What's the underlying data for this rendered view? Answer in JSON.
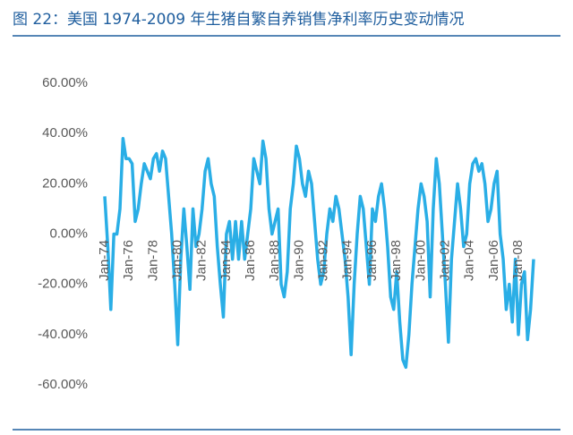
{
  "chart_data": {
    "type": "line",
    "title": "图 22：美国 1974-2009 年生猪自繁自养销售净利率历史变动情况",
    "categories": [
      "Jan-74",
      null,
      null,
      null,
      null,
      null,
      null,
      null,
      "Jan-76",
      null,
      null,
      null,
      null,
      null,
      null,
      null,
      "Jan-78",
      null,
      null,
      null,
      null,
      null,
      null,
      null,
      "Jan-80",
      null,
      null,
      null,
      null,
      null,
      null,
      null,
      "Jan-82",
      null,
      null,
      null,
      null,
      null,
      null,
      null,
      "Jan-84",
      null,
      null,
      null,
      null,
      null,
      null,
      null,
      "Jan-86",
      null,
      null,
      null,
      null,
      null,
      null,
      null,
      "Jan-88",
      null,
      null,
      null,
      null,
      null,
      null,
      null,
      "Jan-90",
      null,
      null,
      null,
      null,
      null,
      null,
      null,
      "Jan-92",
      null,
      null,
      null,
      null,
      null,
      null,
      null,
      "Jan-94",
      null,
      null,
      null,
      null,
      null,
      null,
      null,
      "Jan-96",
      null,
      null,
      null,
      null,
      null,
      null,
      null,
      "Jan-98",
      null,
      null,
      null,
      null,
      null,
      null,
      null,
      "Jan-00",
      null,
      null,
      null,
      null,
      null,
      null,
      null,
      "Jan-02",
      null,
      null,
      null,
      null,
      null,
      null,
      null,
      "Jan-04",
      null,
      null,
      null,
      null,
      null,
      null,
      null,
      "Jan-06",
      null,
      null,
      null,
      null,
      null,
      null,
      null,
      "Jan-08",
      null,
      null,
      null,
      null,
      null
    ],
    "values": [
      15,
      -5,
      -30,
      0,
      0,
      10,
      38,
      30,
      30,
      28,
      5,
      10,
      20,
      28,
      25,
      22,
      30,
      32,
      25,
      33,
      30,
      15,
      0,
      -20,
      -44,
      -10,
      10,
      -5,
      -22,
      10,
      -5,
      0,
      10,
      25,
      30,
      20,
      15,
      -5,
      -20,
      -33,
      0,
      5,
      -10,
      5,
      -10,
      5,
      -10,
      0,
      10,
      30,
      25,
      20,
      37,
      30,
      10,
      0,
      5,
      10,
      -20,
      -25,
      -15,
      10,
      20,
      35,
      30,
      20,
      15,
      25,
      20,
      5,
      -10,
      -20,
      -15,
      0,
      10,
      5,
      15,
      10,
      0,
      -10,
      -25,
      -48,
      -20,
      0,
      15,
      10,
      -5,
      -20,
      10,
      5,
      15,
      20,
      10,
      -5,
      -25,
      -30,
      -15,
      -35,
      -50,
      -53,
      -40,
      -20,
      -5,
      10,
      20,
      15,
      5,
      -25,
      10,
      30,
      20,
      0,
      -20,
      -43,
      -10,
      5,
      20,
      10,
      -5,
      0,
      20,
      28,
      30,
      25,
      28,
      20,
      5,
      10,
      20,
      25,
      0,
      -10,
      -30,
      -20,
      -35,
      -10,
      -40,
      -20,
      -15,
      -42,
      -30,
      -10
    ],
    "color": "#2aaee6",
    "ylim": [
      -60,
      60
    ],
    "yticks": [
      {
        "value": -60,
        "label": "-60.00%"
      },
      {
        "value": -40,
        "label": "-40.00%"
      },
      {
        "value": -20,
        "label": "-20.00%"
      },
      {
        "value": 0,
        "label": "0.00%"
      },
      {
        "value": 20,
        "label": "20.00%"
      },
      {
        "value": 40,
        "label": "40.00%"
      },
      {
        "value": 60,
        "label": "60.00%"
      }
    ]
  }
}
